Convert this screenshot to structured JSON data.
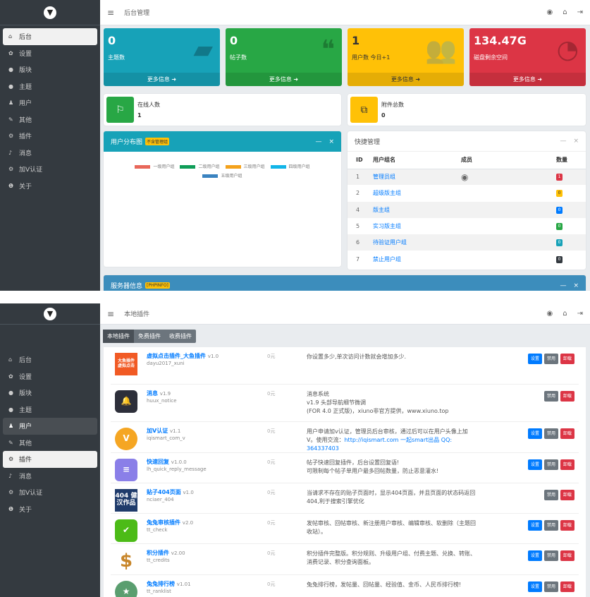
{
  "screen1": {
    "header": {
      "title": "后台管理",
      "right_icons": [
        "avatar-icon",
        "home-icon",
        "logout-icon"
      ]
    },
    "sidebar": {
      "items": [
        {
          "label": "后台",
          "icon": "home-icon"
        },
        {
          "label": "设置",
          "icon": "gear-icon"
        },
        {
          "label": "版块",
          "icon": "comment-icon"
        },
        {
          "label": "主题",
          "icon": "comment-icon"
        },
        {
          "label": "用户",
          "icon": "user-icon"
        },
        {
          "label": "其他",
          "icon": "wrench-icon"
        },
        {
          "label": "插件",
          "icon": "cogs-icon"
        },
        {
          "label": "消息",
          "icon": "bell-icon"
        },
        {
          "label": "加V认证",
          "icon": "cogs-icon"
        },
        {
          "label": "关于",
          "icon": "info-icon"
        }
      ],
      "active": "后台"
    },
    "cards": [
      {
        "value": "0",
        "label": "主题数",
        "more": "更多信息",
        "color": "#17a2b8"
      },
      {
        "value": "0",
        "label": "帖子数",
        "more": "更多信息",
        "color": "#28a745"
      },
      {
        "value": "1",
        "label": "用户数 今日+1",
        "more": "更多信息",
        "color": "#ffc107"
      },
      {
        "value": "134.47G",
        "label": "磁盘剩余空间",
        "more": "更多信息",
        "color": "#dc3545"
      }
    ],
    "online": {
      "label": "在线人数",
      "value": "1"
    },
    "attachments": {
      "label": "附件总数",
      "value": "0"
    },
    "user_chart": {
      "title": "用户分布图",
      "tag": "不含管理组",
      "legend": [
        {
          "name": "一级用户组",
          "color": "#e8675a"
        },
        {
          "name": "二级用户组",
          "color": "#0f9d58"
        },
        {
          "name": "三级用户组",
          "color": "#f4a21c"
        },
        {
          "name": "四级用户组",
          "color": "#12b5e8"
        },
        {
          "name": "五级用户组",
          "color": "#3a83c0"
        }
      ]
    },
    "quick": {
      "title": "快捷管理",
      "columns": [
        "ID",
        "用户组名",
        "成员",
        "数量"
      ],
      "rows": [
        {
          "id": "1",
          "name": "管理员组",
          "count": "1",
          "color": "#dc3545"
        },
        {
          "id": "2",
          "name": "超级版主组",
          "count": "0",
          "color": "#ffc107"
        },
        {
          "id": "4",
          "name": "版主组",
          "count": "0",
          "color": "#007bff"
        },
        {
          "id": "5",
          "name": "实习版主组",
          "count": "0",
          "color": "#28a745"
        },
        {
          "id": "6",
          "name": "待验证用户组",
          "count": "0",
          "color": "#17a2b8"
        },
        {
          "id": "7",
          "name": "禁止用户组",
          "count": "0",
          "color": "#343a40"
        }
      ]
    },
    "server": {
      "title": "服务器信息",
      "tag": "[PHPINFO]"
    }
  },
  "screen2": {
    "header": {
      "title": "本地插件"
    },
    "active": "插件",
    "tabs": [
      "本地插件",
      "免费插件",
      "收费插件"
    ],
    "buttons": {
      "settings": "设置",
      "disable": "禁用",
      "uninstall": "卸载"
    },
    "plugins": [
      {
        "name": "虚拟点击插件_大鱼插件",
        "version": "v1.0",
        "id": "dayu2017_xuni",
        "price": "0元",
        "desc": [
          "你设置多少,单次访问计数就会增加多少."
        ],
        "icon_text": "大鱼插件 虚拟点击",
        "settings": true
      },
      {
        "name": "消息",
        "version": "v1.9",
        "id": "huux_notice",
        "price": "0元",
        "desc": [
          "消息系统",
          "v1.9 头部导航细节微调",
          "(FOR 4.0 正式版)，xiuno非官方提供，www.xiuno.top"
        ],
        "icon_text": "bell",
        "settings": false
      },
      {
        "name": "加V认证",
        "version": "v1.1",
        "id": "iqismart_com_v",
        "price": "0元",
        "desc": [
          "用户申请加v认证，管理员后台审核，通过后可以在用户头像上加",
          "V。使用交流："
        ],
        "link": "http://iqismart.com 一起smart出品 QQ: 364337403",
        "icon_text": "V",
        "settings": true
      },
      {
        "name": "快速回复",
        "version": "v1.0.0",
        "id": "lh_quick_reply_message",
        "price": "0元",
        "desc": [
          "帖子快速回复插件，后台设置回复语!",
          "可限制每个帖子单用户最多回帖数量，防止恶意灌水!"
        ],
        "icon_text": "≡",
        "settings": true
      },
      {
        "name": "贴子404页面",
        "version": "v1.0",
        "id": "nciaer_404",
        "price": "0元",
        "desc": [
          "当请求不存在的贴子页面时，显示404页面，并且页面的状态码返回",
          "404,利于搜索引擎优化"
        ],
        "icon_text": "404 健汉作品",
        "settings": false
      },
      {
        "name": "兔兔审核插件",
        "version": "v2.0",
        "id": "tt_check",
        "price": "0元",
        "desc": [
          "发帖审核、回帖审核、新注册用户审核、编辑审核、软删除（主题回",
          "收站）。"
        ],
        "icon_text": "✔",
        "settings": true
      },
      {
        "name": "积分插件",
        "version": "v2.00",
        "id": "tt_credits",
        "price": "0元",
        "desc": [
          "积分插件完整版。积分规则、升级用户组、付费主题、兑换、转账、",
          "消费记录、积分查询面板。"
        ],
        "icon_text": "$",
        "settings": true
      },
      {
        "name": "兔兔排行榜",
        "version": "v1.01",
        "id": "tt_ranklist",
        "price": "0元",
        "desc": [
          "兔兔排行榜，发帖量、回帖量、经验值、金币、人民币排行榜!"
        ],
        "icon_text": "★",
        "settings": true
      }
    ]
  }
}
